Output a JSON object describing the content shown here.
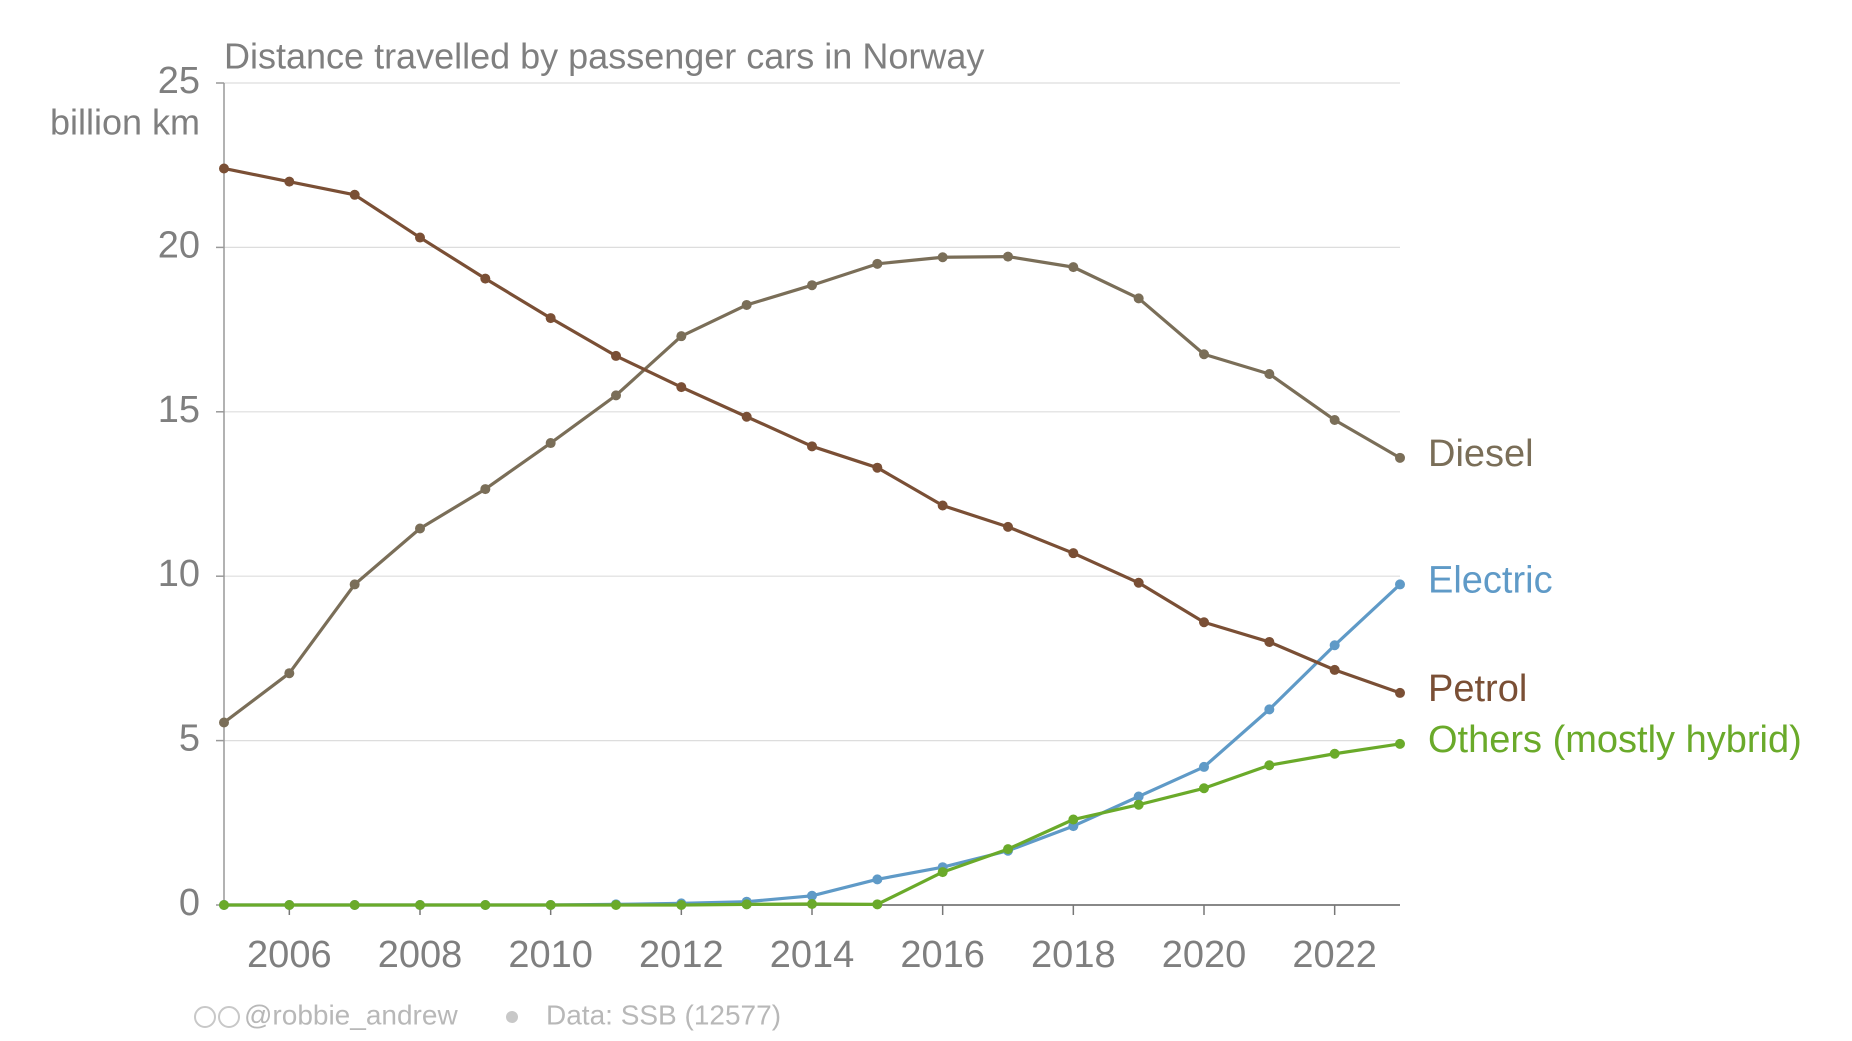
{
  "chart_data": {
    "type": "line",
    "title": "Distance travelled by passenger cars in Norway",
    "y_label": "billion km",
    "x": [
      2005,
      2006,
      2007,
      2008,
      2009,
      2010,
      2011,
      2012,
      2013,
      2014,
      2015,
      2016,
      2017,
      2018,
      2019,
      2020,
      2021,
      2022,
      2023
    ],
    "series": [
      {
        "name": "Diesel",
        "color": "#7a6e58",
        "values": [
          5.55,
          7.05,
          9.75,
          11.45,
          12.65,
          14.05,
          15.5,
          17.3,
          18.25,
          18.85,
          19.5,
          19.7,
          19.72,
          19.4,
          18.45,
          16.75,
          16.15,
          14.75,
          13.6
        ]
      },
      {
        "name": "Electric",
        "color": "#5f9ac7",
        "values": [
          0,
          0,
          0,
          0,
          0,
          0,
          0.02,
          0.05,
          0.1,
          0.28,
          0.78,
          1.15,
          1.65,
          2.4,
          3.3,
          4.2,
          5.95,
          7.9,
          9.75
        ]
      },
      {
        "name": "Petrol",
        "color": "#7a4f35",
        "values": [
          22.4,
          22.0,
          21.6,
          20.3,
          19.05,
          17.85,
          16.7,
          15.75,
          14.85,
          13.95,
          13.3,
          12.15,
          11.5,
          10.7,
          9.8,
          8.6,
          8.0,
          7.15,
          6.45
        ]
      },
      {
        "name": "Others (mostly hybrid)",
        "color": "#6aaa2a",
        "values": [
          0,
          0,
          0,
          0,
          0,
          0,
          0,
          0,
          0.02,
          0.03,
          0.02,
          1.0,
          1.7,
          2.6,
          3.05,
          3.55,
          4.25,
          4.6,
          4.9
        ]
      }
    ],
    "xlim": [
      2005,
      2023
    ],
    "xticks": [
      2006,
      2008,
      2010,
      2012,
      2014,
      2016,
      2018,
      2020,
      2022
    ],
    "ylim": [
      0,
      25
    ],
    "yticks": [
      0,
      5,
      10,
      15,
      20,
      25
    ],
    "grid": true,
    "credit": "@robbie_andrew",
    "source": "Data: SSB (12577)"
  }
}
